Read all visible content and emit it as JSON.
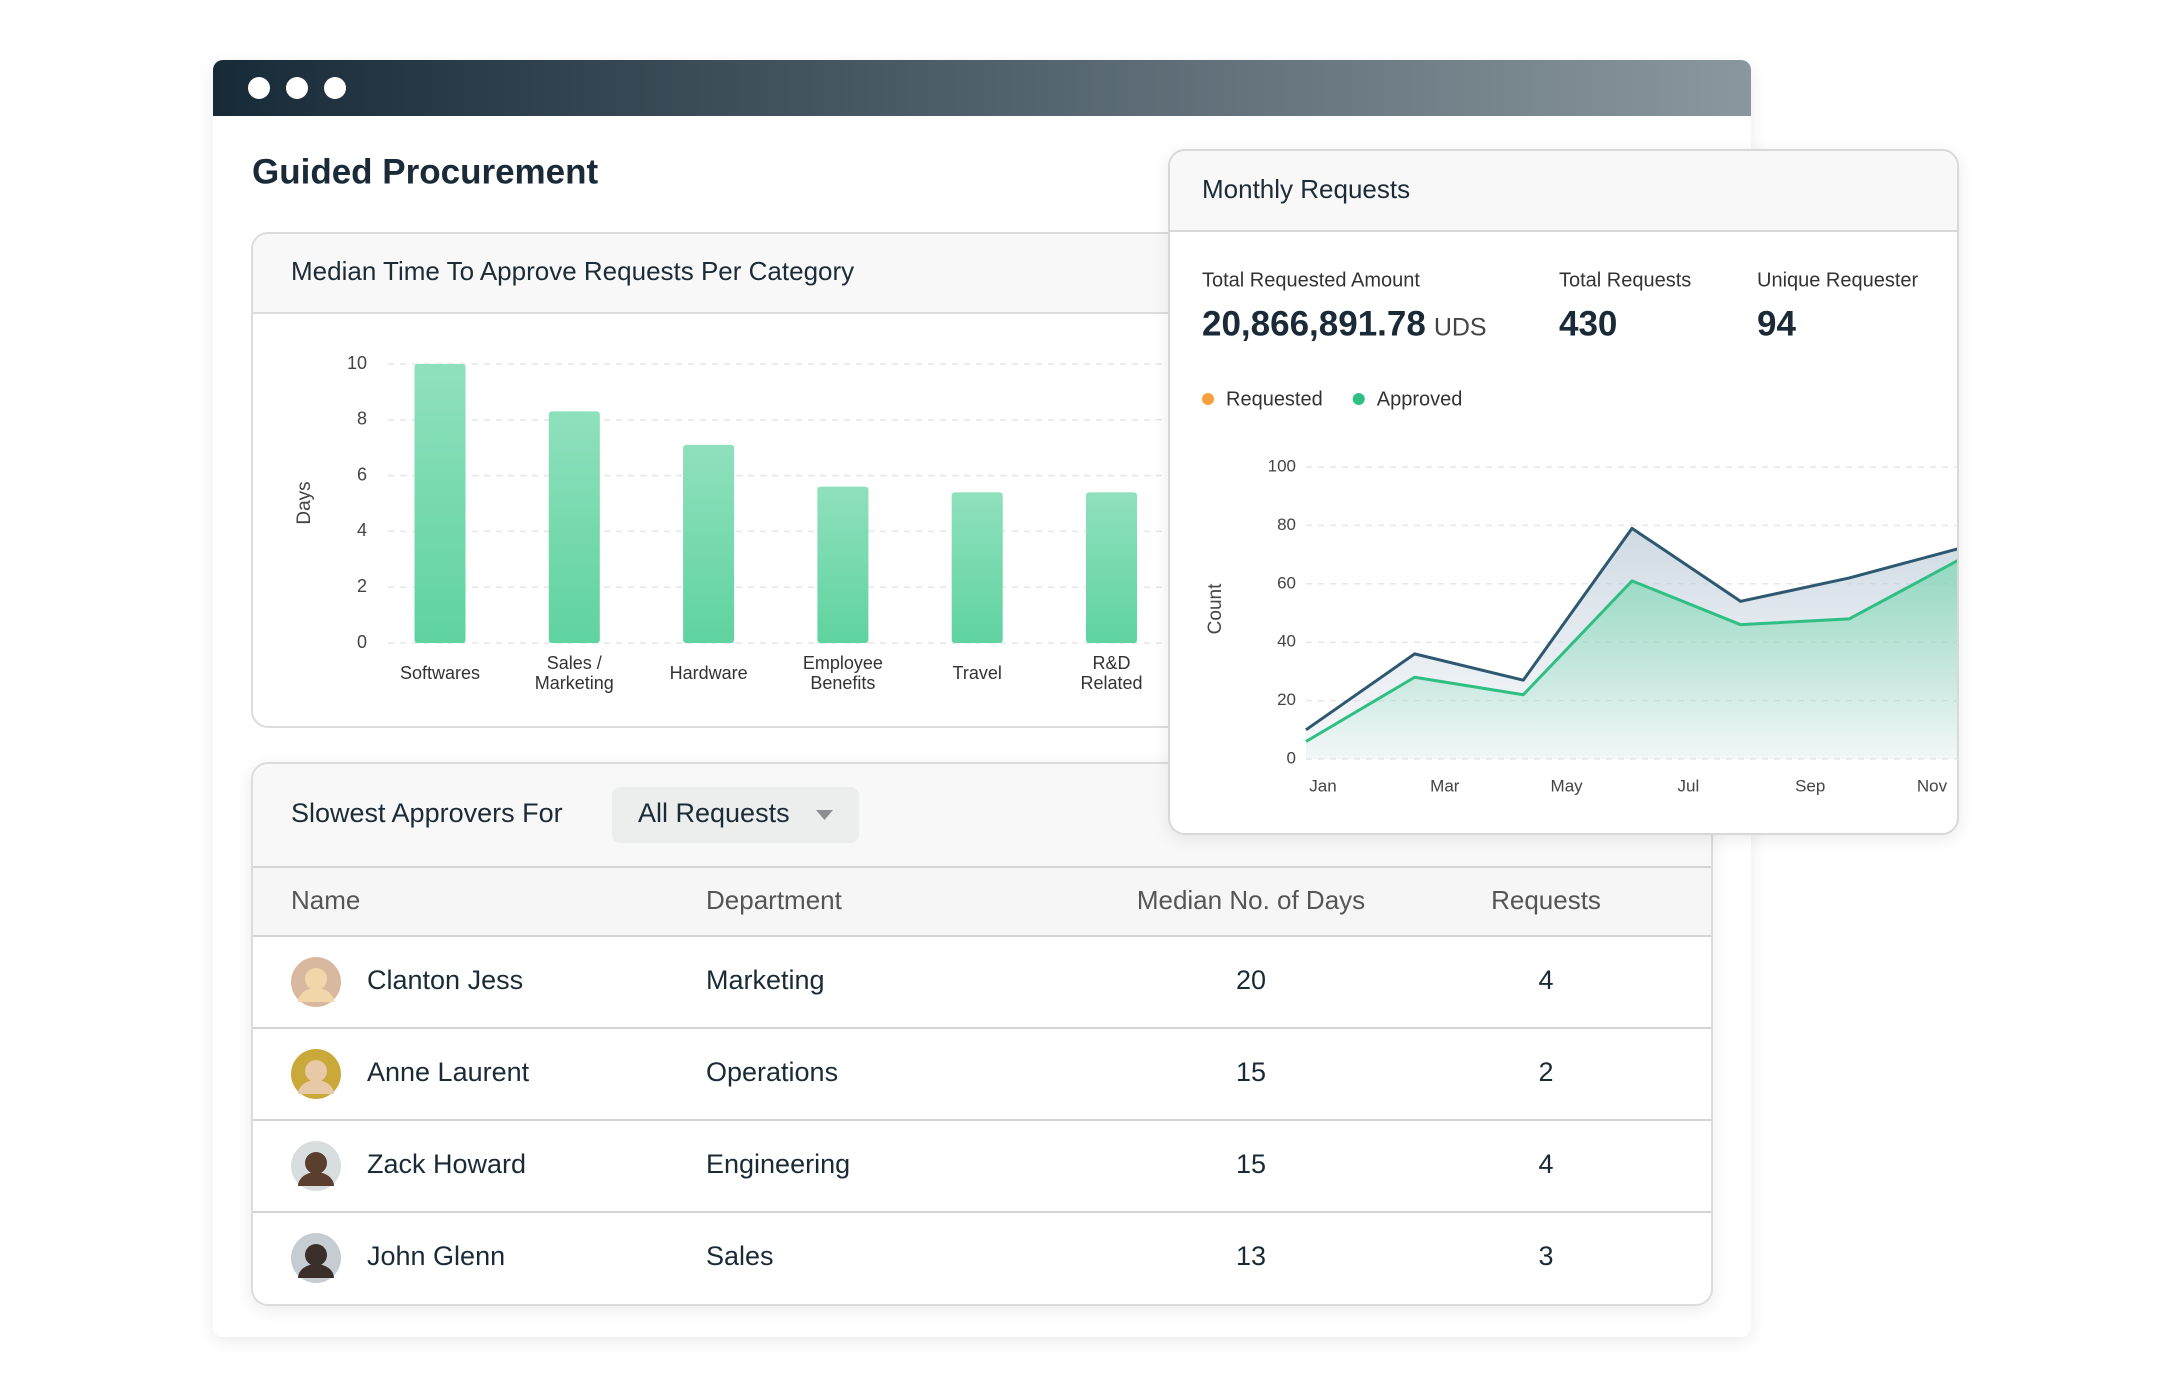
{
  "window": {
    "title": "Guided Procurement"
  },
  "bar_chart": {
    "type": "bar",
    "title": "Median Time To Approve Requests Per Category",
    "y_label": "Days",
    "categories": [
      [
        "Softwares"
      ],
      [
        "Sales /",
        "Marketing"
      ],
      [
        "Hardware"
      ],
      [
        "Employee",
        "Benefits"
      ],
      [
        "Travel"
      ],
      [
        "R&D",
        "Related"
      ]
    ],
    "values": [
      10,
      8.3,
      7.1,
      5.6,
      5.4,
      5.4
    ],
    "color": "#5fd3a0",
    "ylim": [
      0,
      10
    ],
    "yticks": [
      0,
      2,
      4,
      6,
      8,
      10
    ],
    "grid": true
  },
  "monthly": {
    "title": "Monthly Requests",
    "stats": [
      {
        "label": "Total Requested Amount",
        "value": "20,866,891.78",
        "unit": "UDS"
      },
      {
        "label": "Total Requests",
        "value": 430
      },
      {
        "label": "Unique Requester",
        "value": 94
      }
    ],
    "chart": {
      "type": "line",
      "y_label": "Count",
      "x_labels": [
        "Jan",
        "Mar",
        "May",
        "Jul",
        "Sep",
        "Nov"
      ],
      "series": [
        {
          "name": "Requested",
          "color": "#f5a03c",
          "line_color": "#2e5870",
          "values": [
            10,
            36,
            27,
            79,
            54,
            62,
            72
          ]
        },
        {
          "name": "Approved",
          "color": "#2fbf85",
          "line_color": "#2fbf85",
          "values": [
            6,
            28,
            22,
            61,
            46,
            48,
            68
          ]
        }
      ],
      "ylim": [
        0,
        100
      ],
      "yticks": [
        0,
        20,
        40,
        60,
        80,
        100
      ],
      "grid": true
    }
  },
  "table": {
    "title": "Slowest Approvers For",
    "filter": "All Requests",
    "columns": [
      "Name",
      "Department",
      "Median No. of Days",
      "Requests"
    ],
    "rows": [
      [
        "Clanton Jess",
        "Marketing",
        20,
        4
      ],
      [
        "Anne Laurent",
        "Operations",
        15,
        2
      ],
      [
        "Zack Howard",
        "Engineering",
        15,
        4
      ],
      [
        "John Glenn",
        "Sales",
        13,
        3
      ]
    ]
  }
}
